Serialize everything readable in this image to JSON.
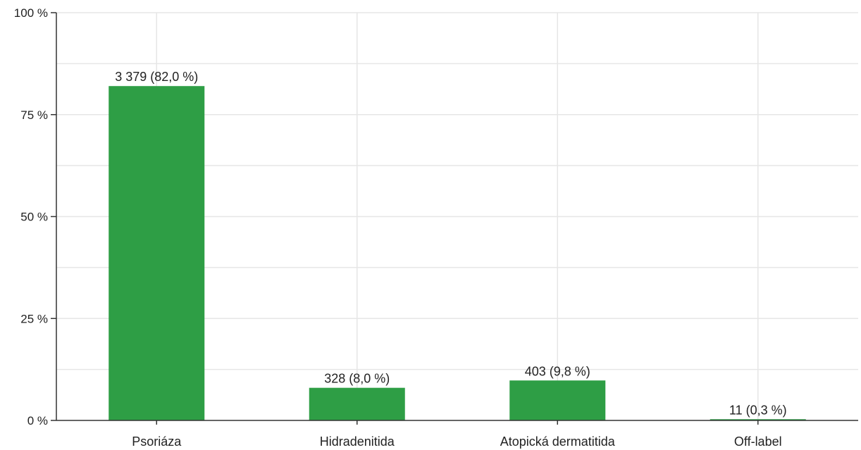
{
  "chart_data": {
    "type": "bar",
    "categories": [
      "Psoriáza",
      "Hidradenitida",
      "Atopická dermatitida",
      "Off-label"
    ],
    "values": [
      82.0,
      8.0,
      9.8,
      0.3
    ],
    "data_labels": [
      "3 379 (82,0 %)",
      "328 (8,0 %)",
      "403 (9,8 %)",
      "11 (0,3 %)"
    ],
    "y_ticks": [
      0,
      25,
      50,
      75,
      100
    ],
    "y_tick_labels": [
      "0 %",
      "25 %",
      "50 %",
      "75 %",
      "100 %"
    ],
    "ylim": [
      0,
      100
    ],
    "grid": true,
    "bar_color": "#2e9e45",
    "title": "",
    "xlabel": "",
    "ylabel": ""
  }
}
